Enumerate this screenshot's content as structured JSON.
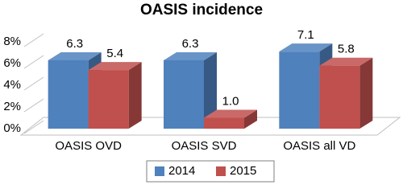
{
  "chart_data": {
    "type": "bar3d",
    "title": "OASIS incidence",
    "categories": [
      "OASIS OVD",
      "OASIS SVD",
      "OASIS all VD"
    ],
    "series": [
      {
        "name": "2014",
        "color": "#4f81bd",
        "values": [
          6.3,
          6.3,
          7.1
        ]
      },
      {
        "name": "2015",
        "color": "#c0504d",
        "values": [
          5.4,
          1.0,
          5.8
        ],
        "value_labels": [
          "5.4",
          "1.0",
          "5.8"
        ]
      }
    ],
    "ylim": [
      0,
      8
    ],
    "yticks": [
      {
        "value": 0,
        "label": "0%"
      },
      {
        "value": 2,
        "label": "2%"
      },
      {
        "value": 4,
        "label": "4%"
      },
      {
        "value": 6,
        "label": "6%"
      },
      {
        "value": 8,
        "label": "8%"
      }
    ],
    "grid": true,
    "legend": "bottom"
  }
}
